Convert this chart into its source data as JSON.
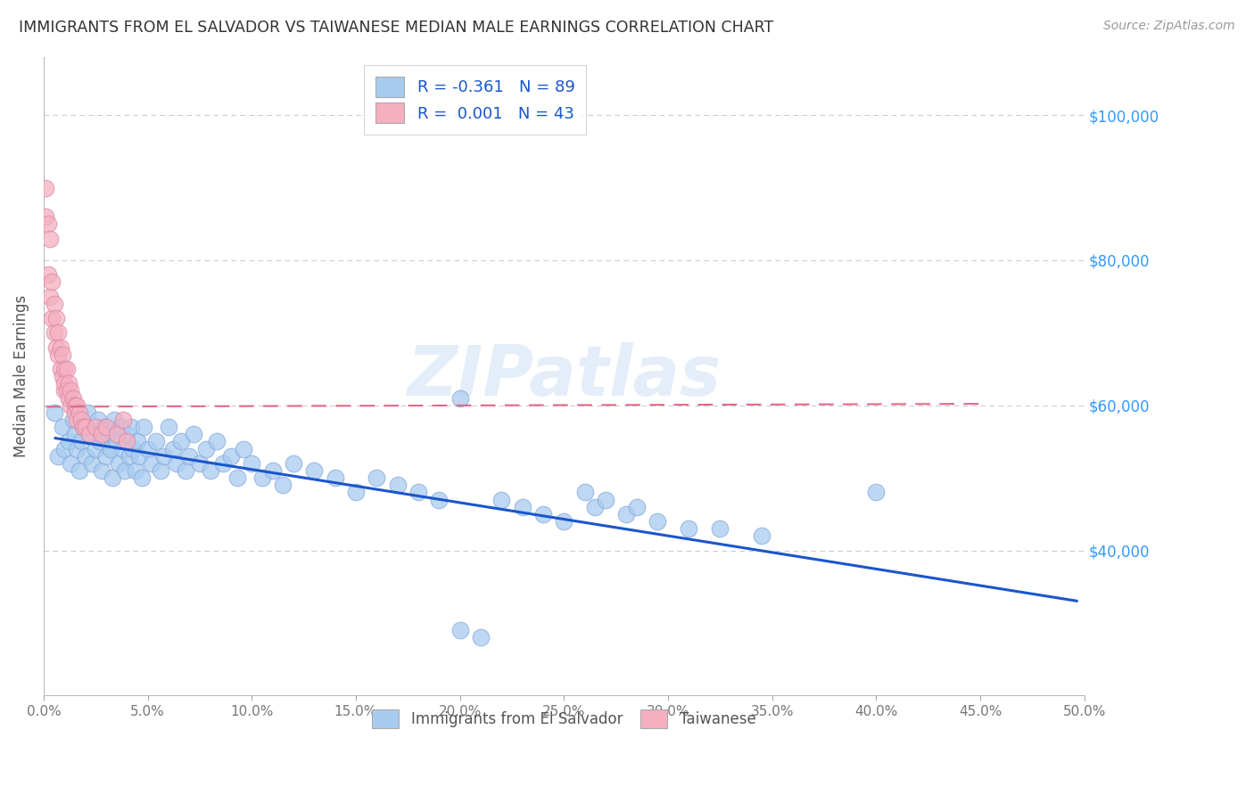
{
  "title": "IMMIGRANTS FROM EL SALVADOR VS TAIWANESE MEDIAN MALE EARNINGS CORRELATION CHART",
  "source": "Source: ZipAtlas.com",
  "ylabel": "Median Male Earnings",
  "watermark": "ZIPatlas",
  "legend1_label": "Immigrants from El Salvador",
  "legend2_label": "Taiwanese",
  "R_blue": -0.361,
  "N_blue": 89,
  "R_pink": 0.001,
  "N_pink": 43,
  "yticks": [
    40000,
    60000,
    80000,
    100000
  ],
  "ytick_labels": [
    "$40,000",
    "$60,000",
    "$80,000",
    "$100,000"
  ],
  "xlim": [
    0.0,
    0.5
  ],
  "ylim": [
    20000,
    108000
  ],
  "blue_fill": "#a8ccf0",
  "pink_fill": "#f4b0c0",
  "blue_line": "#1a56cc",
  "pink_line": "#e06888",
  "grid_color": "#cccccc",
  "right_tick_color": "#3399ff",
  "blue_x": [
    0.005,
    0.007,
    0.009,
    0.01,
    0.012,
    0.013,
    0.014,
    0.015,
    0.016,
    0.017,
    0.018,
    0.019,
    0.02,
    0.021,
    0.022,
    0.023,
    0.025,
    0.026,
    0.027,
    0.028,
    0.029,
    0.03,
    0.031,
    0.032,
    0.033,
    0.034,
    0.035,
    0.036,
    0.037,
    0.038,
    0.039,
    0.04,
    0.041,
    0.042,
    0.043,
    0.044,
    0.045,
    0.046,
    0.047,
    0.048,
    0.05,
    0.052,
    0.054,
    0.056,
    0.058,
    0.06,
    0.062,
    0.064,
    0.066,
    0.068,
    0.07,
    0.072,
    0.075,
    0.078,
    0.08,
    0.083,
    0.086,
    0.09,
    0.093,
    0.096,
    0.1,
    0.105,
    0.11,
    0.115,
    0.12,
    0.13,
    0.14,
    0.15,
    0.16,
    0.17,
    0.18,
    0.19,
    0.2,
    0.21,
    0.22,
    0.23,
    0.24,
    0.25,
    0.265,
    0.28,
    0.295,
    0.31,
    0.325,
    0.345,
    0.26,
    0.27,
    0.285,
    0.4,
    0.2
  ],
  "blue_y": [
    59000,
    53000,
    57000,
    54000,
    55000,
    52000,
    58000,
    56000,
    54000,
    51000,
    55000,
    57000,
    53000,
    59000,
    56000,
    52000,
    54000,
    58000,
    55000,
    51000,
    57000,
    53000,
    56000,
    54000,
    50000,
    58000,
    55000,
    52000,
    57000,
    54000,
    51000,
    56000,
    53000,
    57000,
    54000,
    51000,
    55000,
    53000,
    50000,
    57000,
    54000,
    52000,
    55000,
    51000,
    53000,
    57000,
    54000,
    52000,
    55000,
    51000,
    53000,
    56000,
    52000,
    54000,
    51000,
    55000,
    52000,
    53000,
    50000,
    54000,
    52000,
    50000,
    51000,
    49000,
    52000,
    51000,
    50000,
    48000,
    50000,
    49000,
    48000,
    47000,
    29000,
    28000,
    47000,
    46000,
    45000,
    44000,
    46000,
    45000,
    44000,
    43000,
    43000,
    42000,
    48000,
    47000,
    46000,
    48000,
    61000
  ],
  "pink_x": [
    0.001,
    0.001,
    0.002,
    0.002,
    0.003,
    0.003,
    0.004,
    0.004,
    0.005,
    0.005,
    0.006,
    0.006,
    0.007,
    0.007,
    0.008,
    0.008,
    0.009,
    0.009,
    0.01,
    0.01,
    0.01,
    0.011,
    0.011,
    0.012,
    0.012,
    0.013,
    0.013,
    0.014,
    0.015,
    0.015,
    0.016,
    0.016,
    0.017,
    0.018,
    0.019,
    0.02,
    0.022,
    0.025,
    0.028,
    0.03,
    0.035,
    0.038,
    0.04
  ],
  "pink_y": [
    90000,
    86000,
    85000,
    78000,
    83000,
    75000,
    77000,
    72000,
    74000,
    70000,
    72000,
    68000,
    70000,
    67000,
    68000,
    65000,
    67000,
    64000,
    65000,
    62000,
    63000,
    65000,
    62000,
    63000,
    61000,
    62000,
    60000,
    61000,
    60000,
    59000,
    60000,
    58000,
    59000,
    58000,
    57000,
    57000,
    56000,
    57000,
    56000,
    57000,
    56000,
    58000,
    55000
  ]
}
